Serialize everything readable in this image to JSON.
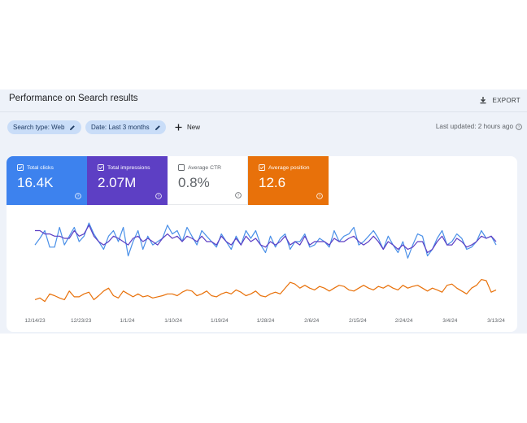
{
  "header": {
    "title": "Performance on Search results",
    "export_label": "EXPORT"
  },
  "filters": {
    "search_type": "Search type: Web",
    "date": "Date: Last 3 months",
    "new_label": "New",
    "last_updated": "Last updated: 2 hours ago"
  },
  "metrics": {
    "clicks": {
      "label": "Total clicks",
      "value": "16.4K",
      "checked": true,
      "color": "#3d82ee"
    },
    "impressions": {
      "label": "Total impressions",
      "value": "2.07M",
      "checked": true,
      "color": "#5d3fc4"
    },
    "ctr": {
      "label": "Average CTR",
      "value": "0.8%",
      "checked": false
    },
    "position": {
      "label": "Average position",
      "value": "12.6",
      "checked": true,
      "color": "#e8710a"
    }
  },
  "chart_data": {
    "type": "line",
    "x_ticks": [
      "12/14/23",
      "12/23/23",
      "1/1/24",
      "1/10/24",
      "1/19/24",
      "1/28/24",
      "2/6/24",
      "2/15/24",
      "2/24/24",
      "3/4/24",
      "3/13/24"
    ],
    "grid": false,
    "series": [
      {
        "name": "Total clicks",
        "color": "#4a90e8",
        "values": [
          58,
          52,
          45,
          60,
          60,
          42,
          58,
          50,
          42,
          55,
          50,
          38,
          48,
          55,
          62,
          50,
          45,
          55,
          42,
          68,
          55,
          45,
          62,
          50,
          58,
          55,
          52,
          40,
          48,
          45,
          55,
          42,
          50,
          58,
          45,
          50,
          55,
          60,
          48,
          55,
          62,
          50,
          58,
          45,
          52,
          45,
          58,
          65,
          50,
          60,
          52,
          48,
          62,
          55,
          55,
          48,
          60,
          58,
          52,
          55,
          60,
          45,
          55,
          50,
          48,
          42,
          58,
          55,
          50,
          45,
          52,
          62,
          50,
          58,
          65,
          55,
          70,
          58,
          48,
          50,
          68,
          62,
          52,
          45,
          58,
          55,
          48,
          52,
          62,
          60,
          55,
          45,
          52,
          50,
          58
        ]
      },
      {
        "name": "Total impressions",
        "color": "#5d3fc4",
        "values": [
          45,
          45,
          48,
          48,
          50,
          50,
          52,
          52,
          45,
          50,
          48,
          40,
          50,
          55,
          58,
          55,
          50,
          52,
          55,
          58,
          52,
          50,
          55,
          52,
          55,
          58,
          52,
          48,
          52,
          50,
          55,
          50,
          52,
          55,
          50,
          55,
          55,
          58,
          50,
          55,
          58,
          52,
          58,
          50,
          55,
          52,
          58,
          60,
          55,
          58,
          55,
          50,
          58,
          55,
          58,
          50,
          58,
          55,
          55,
          55,
          58,
          52,
          55,
          55,
          52,
          50,
          55,
          58,
          55,
          50,
          55,
          62,
          55,
          58,
          62,
          58,
          62,
          60,
          55,
          55,
          65,
          62,
          55,
          50,
          58,
          58,
          52,
          55,
          60,
          58,
          55,
          50,
          52,
          50,
          55
        ]
      },
      {
        "name": "Average position",
        "color": "#e8710a",
        "values": [
          14.5,
          14.2,
          14.8,
          13.5,
          13.8,
          14.2,
          14.5,
          13.0,
          14.0,
          14.0,
          13.5,
          13.2,
          14.5,
          13.8,
          13.0,
          12.5,
          13.8,
          14.2,
          13.0,
          13.5,
          14.0,
          13.5,
          14.0,
          13.8,
          14.2,
          14.0,
          13.8,
          13.5,
          13.5,
          13.8,
          13.2,
          12.8,
          13.0,
          13.8,
          13.5,
          13.0,
          13.8,
          14.0,
          13.5,
          13.2,
          13.5,
          12.8,
          13.2,
          13.8,
          13.5,
          13.0,
          13.8,
          14.0,
          13.5,
          13.2,
          13.5,
          12.5,
          11.5,
          11.8,
          12.5,
          12.0,
          12.5,
          12.8,
          12.2,
          12.5,
          13.0,
          12.5,
          12.0,
          12.2,
          12.8,
          13.0,
          12.5,
          12.0,
          12.5,
          12.8,
          12.2,
          12.5,
          12.0,
          12.5,
          12.8,
          12.0,
          12.5,
          12.2,
          12.0,
          12.5,
          13.0,
          12.5,
          12.8,
          13.2,
          12.0,
          11.8,
          12.5,
          13.0,
          13.5,
          12.5,
          12.0,
          11.0,
          11.2,
          13.2,
          12.8
        ]
      }
    ]
  }
}
